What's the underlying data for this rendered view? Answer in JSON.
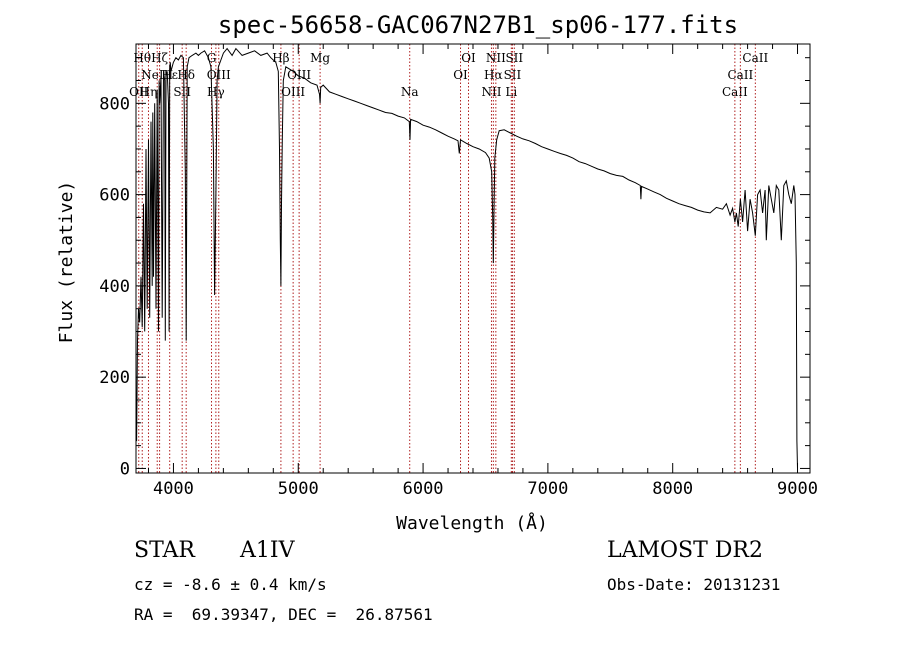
{
  "chart_data": {
    "type": "line",
    "title": "spec-56658-GAC067N27B1_sp06-177.fits",
    "xlabel": "Wavelength (Å)",
    "ylabel": "Flux (relative)",
    "xlim": [
      3700,
      9100
    ],
    "ylim": [
      -10,
      930
    ],
    "xticks": [
      4000,
      5000,
      6000,
      7000,
      8000,
      9000
    ],
    "yticks": [
      0,
      200,
      400,
      600,
      800
    ],
    "grid": false,
    "legend": "none",
    "series": [
      {
        "x": [
          3700,
          3705,
          3712,
          3720,
          3730,
          3740,
          3750,
          3760,
          3770,
          3780,
          3790,
          3800,
          3810,
          3820,
          3830,
          3835,
          3840,
          3850,
          3860,
          3870,
          3880,
          3885,
          3890,
          3900,
          3910,
          3920,
          3930,
          3935,
          3940,
          3950,
          3960,
          3965,
          3970,
          3975,
          3980,
          3990,
          4000,
          4020,
          4040,
          4060,
          4080,
          4095,
          4102,
          4110,
          4125,
          4150,
          4180,
          4200,
          4220,
          4250,
          4280,
          4300,
          4320,
          4330,
          4340,
          4350,
          4360,
          4380,
          4400,
          4430,
          4470,
          4500,
          4550,
          4600,
          4650,
          4700,
          4750,
          4780,
          4800,
          4820,
          4840,
          4850,
          4856,
          4861,
          4866,
          4872,
          4880,
          4900,
          4930,
          4960,
          5000,
          5050,
          5100,
          5150,
          5170,
          5175,
          5180,
          5200,
          5250,
          5300,
          5350,
          5400,
          5450,
          5500,
          5550,
          5600,
          5650,
          5700,
          5750,
          5800,
          5850,
          5890,
          5895,
          5900,
          5950,
          6000,
          6050,
          6100,
          6150,
          6200,
          6250,
          6280,
          6290,
          6300,
          6350,
          6400,
          6450,
          6500,
          6530,
          6550,
          6558,
          6563,
          6568,
          6575,
          6590,
          6610,
          6650,
          6700,
          6750,
          6800,
          6850,
          6900,
          6950,
          7000,
          7050,
          7100,
          7150,
          7200,
          7250,
          7300,
          7350,
          7400,
          7450,
          7500,
          7550,
          7600,
          7650,
          7700,
          7740,
          7745,
          7750,
          7800,
          7850,
          7900,
          7950,
          8000,
          8050,
          8100,
          8150,
          8200,
          8250,
          8300,
          8350,
          8400,
          8430,
          8460,
          8480,
          8498,
          8510,
          8525,
          8542,
          8560,
          8580,
          8600,
          8620,
          8640,
          8662,
          8680,
          8700,
          8720,
          8740,
          8750,
          8770,
          8790,
          8810,
          8830,
          8850,
          8870,
          8890,
          8910,
          8930,
          8950,
          8970,
          8980,
          8990,
          8995,
          9000
        ],
        "y": [
          130,
          60,
          280,
          350,
          320,
          420,
          310,
          580,
          300,
          700,
          350,
          720,
          330,
          760,
          400,
          780,
          420,
          800,
          350,
          830,
          300,
          850,
          800,
          860,
          330,
          870,
          850,
          280,
          860,
          870,
          800,
          300,
          880,
          890,
          870,
          880,
          890,
          900,
          895,
          905,
          900,
          650,
          280,
          880,
          900,
          905,
          910,
          905,
          910,
          915,
          900,
          880,
          700,
          380,
          600,
          850,
          880,
          895,
          910,
          920,
          905,
          920,
          905,
          910,
          915,
          905,
          910,
          900,
          895,
          890,
          870,
          700,
          500,
          400,
          580,
          720,
          850,
          880,
          875,
          870,
          860,
          855,
          845,
          840,
          820,
          800,
          835,
          840,
          825,
          820,
          815,
          810,
          805,
          800,
          795,
          790,
          785,
          780,
          778,
          772,
          768,
          760,
          720,
          765,
          760,
          752,
          748,
          742,
          735,
          728,
          722,
          718,
          690,
          720,
          712,
          705,
          700,
          692,
          680,
          650,
          550,
          450,
          560,
          680,
          720,
          740,
          742,
          735,
          728,
          722,
          718,
          712,
          705,
          700,
          695,
          690,
          686,
          680,
          672,
          668,
          662,
          656,
          652,
          646,
          642,
          640,
          632,
          626,
          620,
          590,
          618,
          612,
          606,
          600,
          592,
          586,
          580,
          576,
          572,
          566,
          562,
          560,
          572,
          568,
          580,
          555,
          570,
          540,
          560,
          530,
          590,
          540,
          610,
          520,
          590,
          560,
          510,
          600,
          610,
          560,
          610,
          500,
          620,
          590,
          560,
          620,
          610,
          500,
          620,
          630,
          600,
          580,
          620,
          600,
          450,
          60,
          0
        ]
      }
    ],
    "line_markers": [
      {
        "x": 3722,
        "label": "OII",
        "row": 3
      },
      {
        "x": 3750,
        "label": "Hθ",
        "row": 1
      },
      {
        "x": 3800,
        "label": "Hη",
        "row": 3
      },
      {
        "x": 3870,
        "label": "NeIII",
        "row": 2
      },
      {
        "x": 3889,
        "label": "Hζ",
        "row": 1
      },
      {
        "x": 3970,
        "label": "Hε",
        "row": 2
      },
      {
        "x": 4070,
        "label": "SII",
        "row": 3
      },
      {
        "x": 4102,
        "label": "Hδ",
        "row": 2
      },
      {
        "x": 4305,
        "label": "G",
        "row": 1
      },
      {
        "x": 4340,
        "label": "Hγ",
        "row": 3
      },
      {
        "x": 4363,
        "label": "OIII",
        "row": 2
      },
      {
        "x": 4861,
        "label": "Hβ",
        "row": 1
      },
      {
        "x": 4959,
        "label": "OIII",
        "row": 3
      },
      {
        "x": 5007,
        "label": "OIII",
        "row": 2
      },
      {
        "x": 5175,
        "label": "Mg",
        "row": 1
      },
      {
        "x": 5893,
        "label": "Na",
        "row": 3
      },
      {
        "x": 6300,
        "label": "OI",
        "row": 2
      },
      {
        "x": 6364,
        "label": "OI",
        "row": 1
      },
      {
        "x": 6548,
        "label": "NII",
        "row": 3
      },
      {
        "x": 6563,
        "label": "Hα",
        "row": 2
      },
      {
        "x": 6583,
        "label": "NII",
        "row": 1
      },
      {
        "x": 6707,
        "label": "Li",
        "row": 3
      },
      {
        "x": 6716,
        "label": "SII",
        "row": 2
      },
      {
        "x": 6731,
        "label": "SII",
        "row": 1
      },
      {
        "x": 8498,
        "label": "CaII",
        "row": 3
      },
      {
        "x": 8542,
        "label": "CaII",
        "row": 2
      },
      {
        "x": 8662,
        "label": "CaII",
        "row": 1
      }
    ]
  },
  "info": {
    "class": "STAR",
    "subclass": "A1IV",
    "survey": "LAMOST DR2",
    "redshift": "cz = -8.6 ± 0.4 km/s",
    "obs_date": "Obs-Date: 20131231",
    "coords": "RA =  69.39347, DEC =  26.87561"
  }
}
